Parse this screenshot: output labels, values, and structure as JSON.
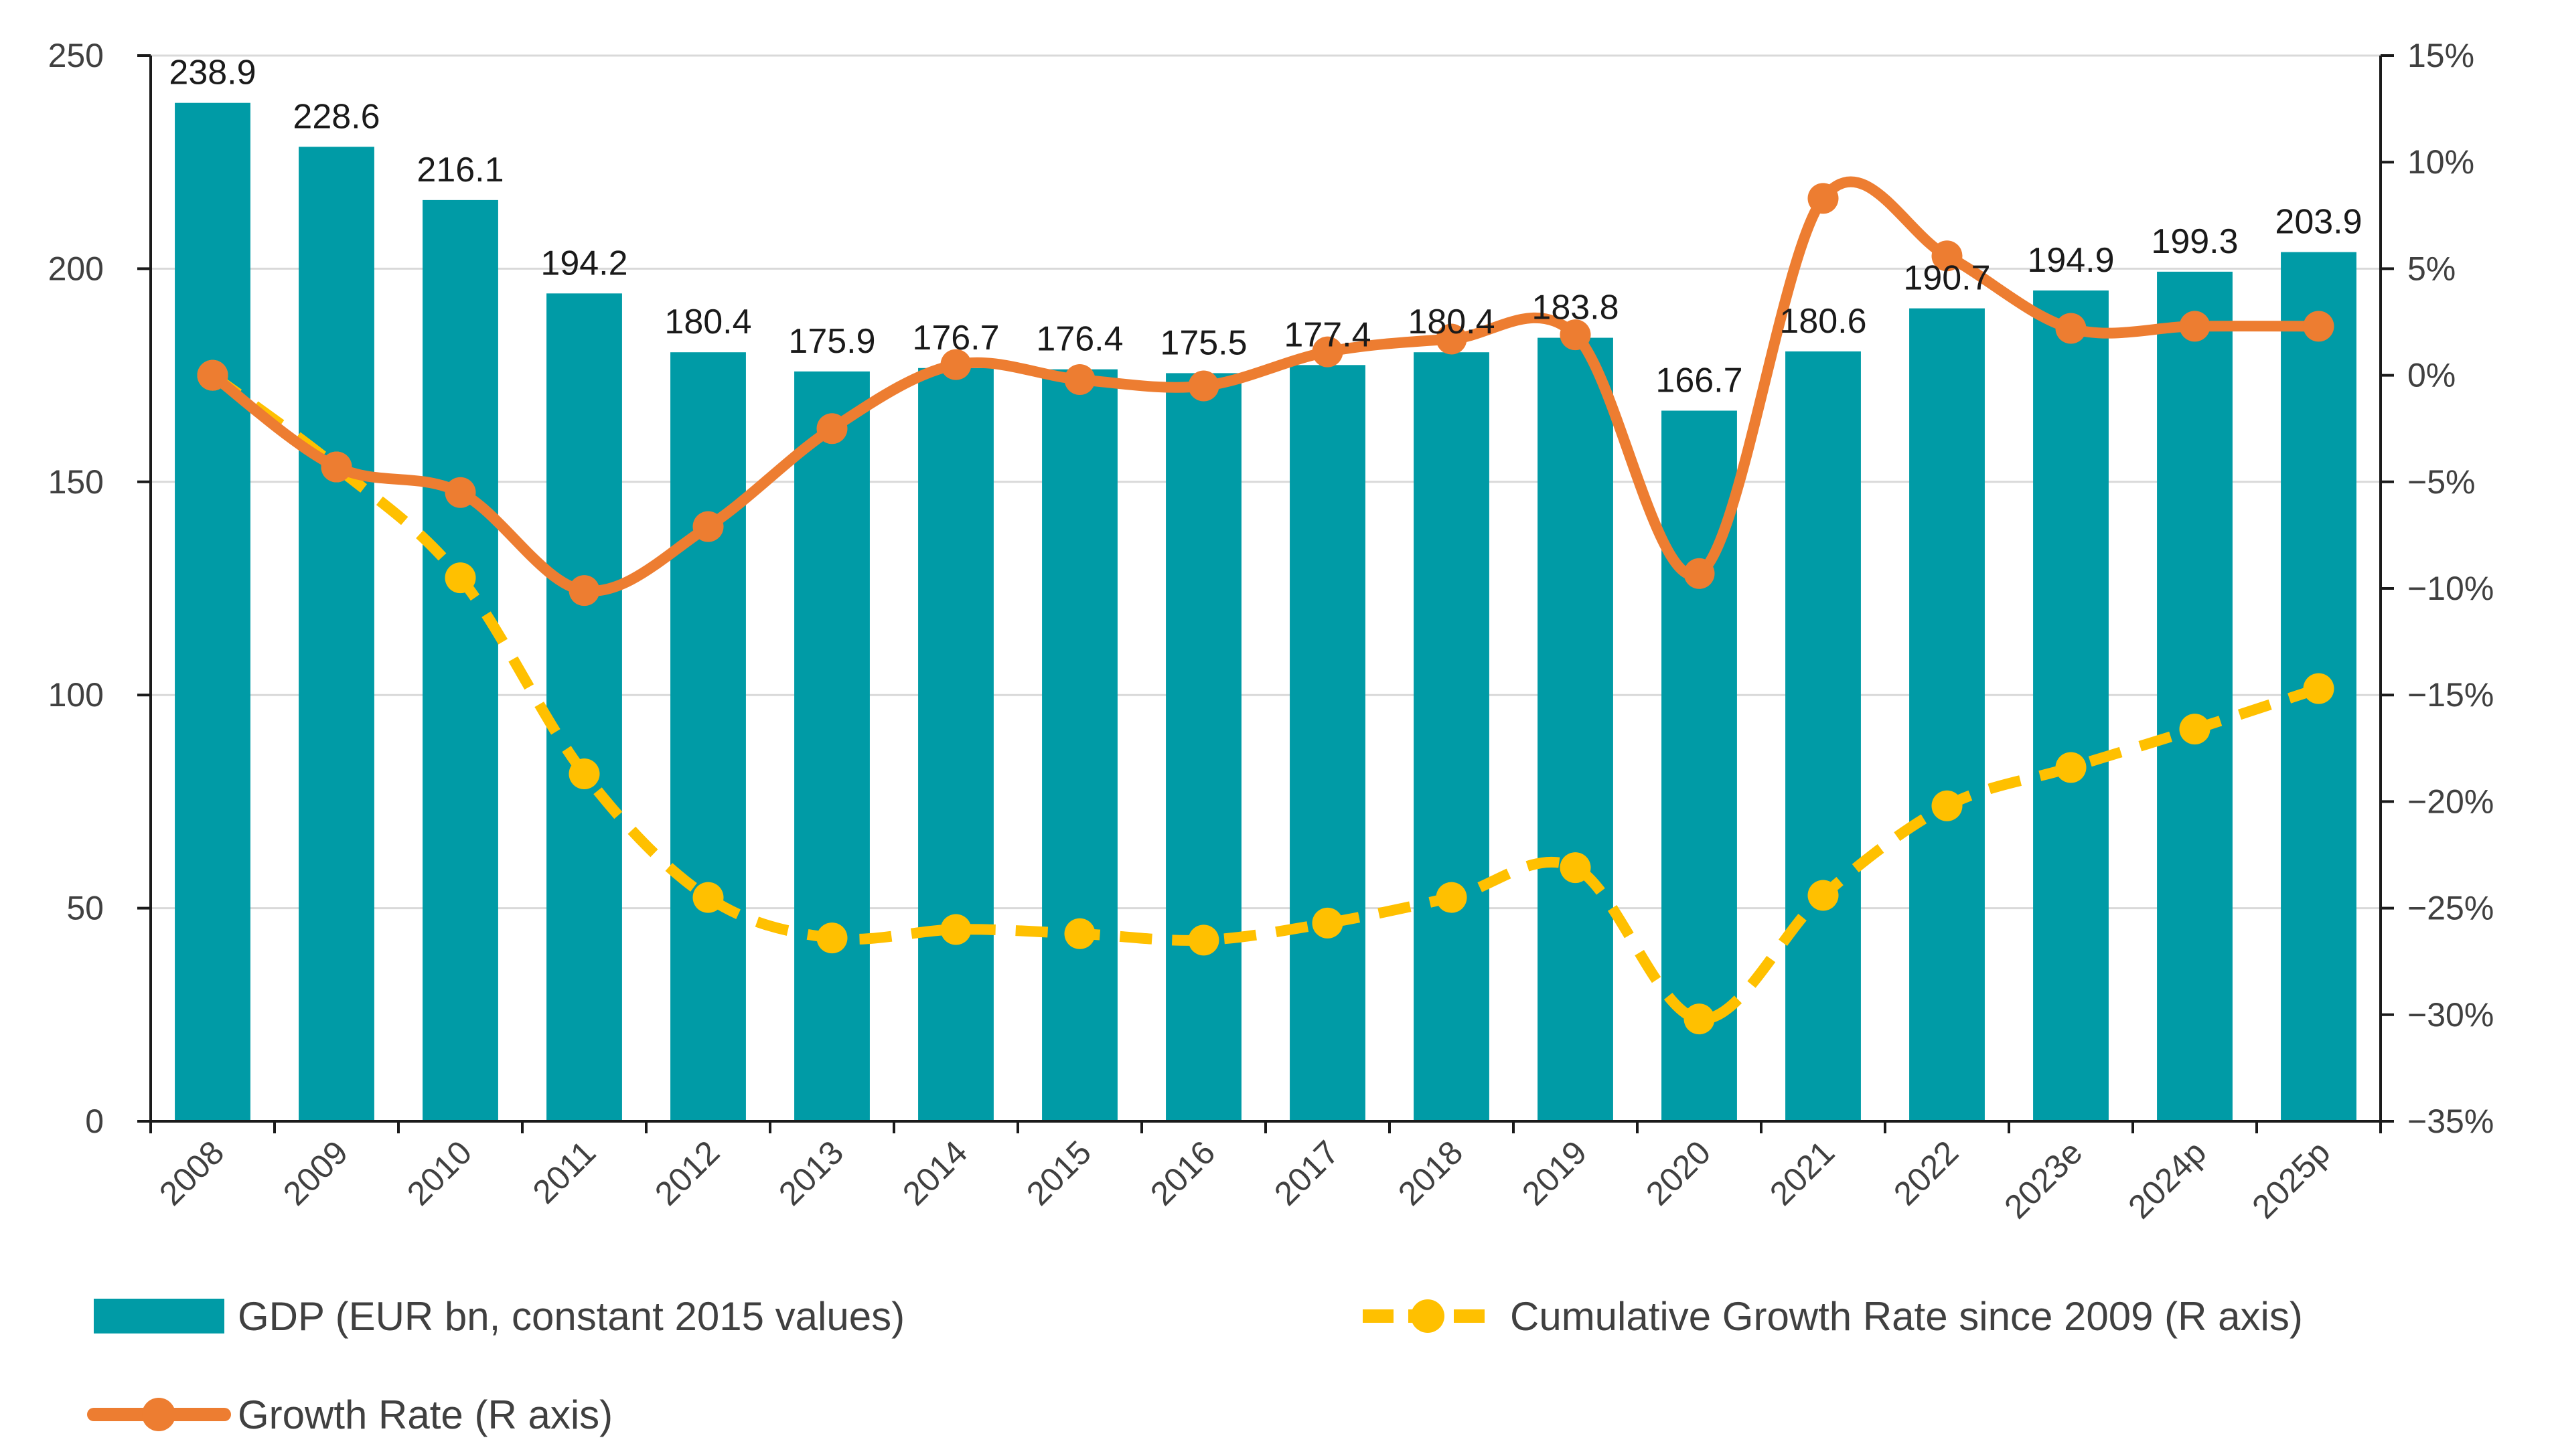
{
  "chart_data": {
    "type": "bar",
    "categories": [
      "2008",
      "2009",
      "2010",
      "2011",
      "2012",
      "2013",
      "2014",
      "2015",
      "2016",
      "2017",
      "2018",
      "2019",
      "2020",
      "2021",
      "2022",
      "2023e",
      "2024p",
      "2025p"
    ],
    "series": [
      {
        "name": "GDP (EUR bn, constant 2015 values)",
        "type": "bar",
        "axis": "left",
        "color": "#009BA6",
        "values": [
          238.9,
          228.6,
          216.1,
          194.2,
          180.4,
          175.9,
          176.7,
          176.4,
          175.5,
          177.4,
          180.4,
          183.8,
          166.7,
          180.6,
          190.7,
          194.9,
          199.3,
          203.9
        ],
        "labels": [
          "238.9",
          "228.6",
          "216.1",
          "194.2",
          "180.4",
          "175.9",
          "176.7",
          "176.4",
          "175.5",
          "177.4",
          "180.4",
          "183.8",
          "166.7",
          "180.6",
          "190.7",
          "194.9",
          "199.3",
          "203.9"
        ]
      },
      {
        "name": "Cumulative Growth Rate since 2009 (R axis)",
        "type": "line",
        "style": "dashed",
        "axis": "right",
        "color": "#FFC000",
        "values": [
          0.0,
          -4.3,
          -9.5,
          -18.7,
          -24.5,
          -26.4,
          -26.0,
          -26.2,
          -26.5,
          -25.7,
          -24.5,
          -23.1,
          -30.2,
          -24.4,
          -20.2,
          -18.4,
          -16.6,
          -14.7
        ]
      },
      {
        "name": "Growth Rate (R axis)",
        "type": "line",
        "style": "solid-smooth",
        "axis": "right",
        "color": "#ED7D31",
        "values": [
          0.0,
          -4.3,
          -5.5,
          -10.1,
          -7.1,
          -2.5,
          0.5,
          -0.2,
          -0.5,
          1.1,
          1.7,
          1.9,
          -9.3,
          8.3,
          5.6,
          2.2,
          2.3,
          2.3
        ]
      }
    ],
    "left_axis": {
      "min": 0,
      "max": 250,
      "ticks": [
        0,
        50,
        100,
        150,
        200,
        250
      ],
      "tick_labels": [
        "0",
        "50",
        "100",
        "150",
        "200",
        "250"
      ]
    },
    "right_axis": {
      "min": -35,
      "max": 15,
      "ticks": [
        -35,
        -30,
        -25,
        -20,
        -15,
        -10,
        -5,
        0,
        5,
        10,
        15
      ],
      "tick_labels": [
        "−35%",
        "−30%",
        "−25%",
        "−20%",
        "−15%",
        "−10%",
        "−5%",
        "0%",
        "5%",
        "10%",
        "15%"
      ]
    },
    "grid": true,
    "legend_position": "bottom"
  }
}
